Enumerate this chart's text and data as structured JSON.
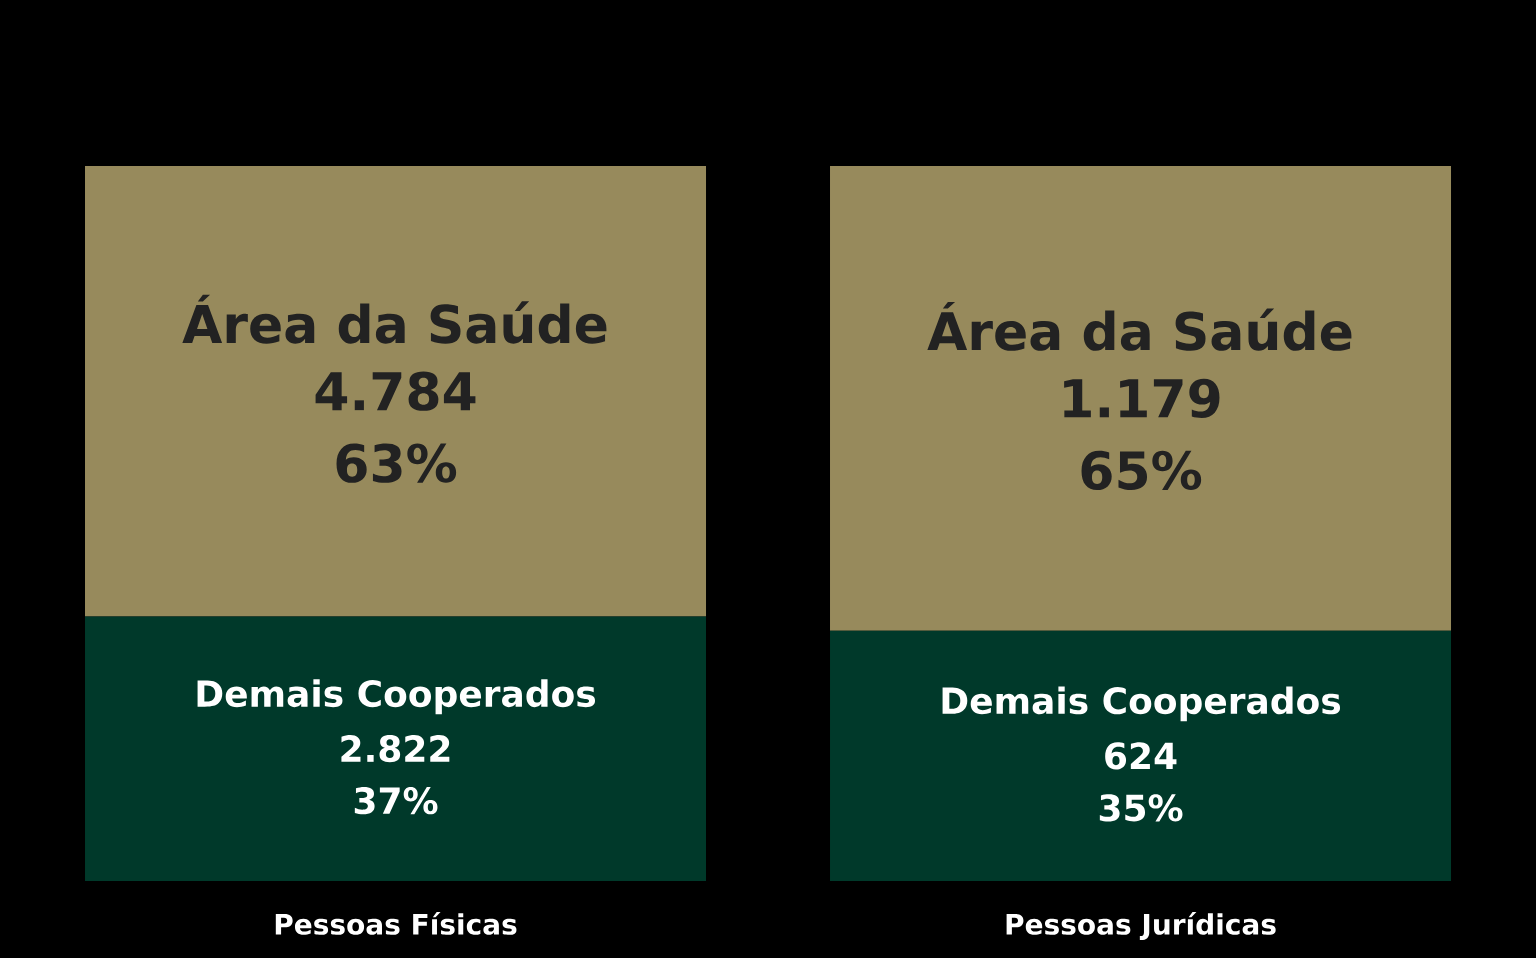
{
  "chart_data": {
    "type": "bar",
    "stacked": true,
    "legend": false,
    "categories": [
      "Pessoas Físicas",
      "Pessoas Jurídicas"
    ],
    "series": [
      {
        "name": "Demais Cooperados",
        "color": "#00392a",
        "values": [
          37,
          35
        ],
        "value_labels": [
          "37%",
          "35%"
        ]
      },
      {
        "name": "Área da Saúde",
        "color": "#978a5c",
        "values": [
          63,
          65
        ],
        "value_labels": [
          "63%",
          "65%"
        ]
      }
    ],
    "annotations": [
      "2.822",
      "4.784",
      "624",
      "1.179"
    ]
  }
}
